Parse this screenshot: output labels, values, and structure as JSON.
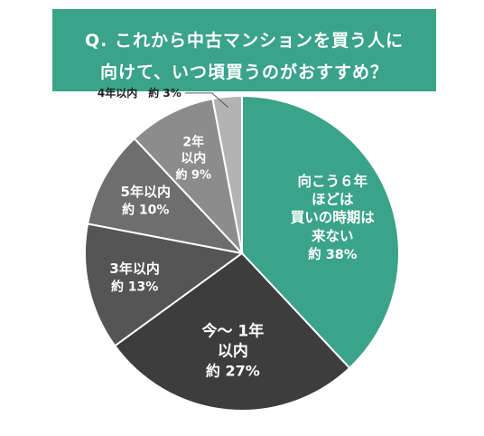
{
  "title": {
    "line1": "Q. これから中古マンションを買う人に",
    "line2": "向けて、いつ頃買うのがおすすめ？"
  },
  "chart_data": {
    "type": "pie",
    "title": "Q. これから中古マンションを買う人に向けて、いつ頃買うのがおすすめ？",
    "start_angle_deg": 0,
    "direction": "clockwise",
    "slices": [
      {
        "label": "向こう６年ほどは買いの時期は来ない",
        "label_lines": [
          "向こう６年",
          "ほどは",
          "買いの時期は",
          "来ない"
        ],
        "value": 38,
        "value_label": "約 38%",
        "color": "#3aa38a"
      },
      {
        "label": "今〜１年以内",
        "label_lines": [
          "今〜 1年",
          "以内"
        ],
        "value": 27,
        "value_label": "約 27%",
        "color": "#3d3d3d"
      },
      {
        "label": "３年以内",
        "label_lines": [
          "3年以内"
        ],
        "value": 13,
        "value_label": "約 13%",
        "color": "#555555"
      },
      {
        "label": "５年以内",
        "label_lines": [
          "5年以内"
        ],
        "value": 10,
        "value_label": "約 10%",
        "color": "#6e6e6e"
      },
      {
        "label": "２年以内",
        "label_lines": [
          "2年",
          "以内"
        ],
        "value": 9,
        "value_label": "約 9%",
        "color": "#8c8c8c"
      },
      {
        "label": "４年以内",
        "label_lines": [
          "4年以内"
        ],
        "value": 3,
        "value_label": "約 3%",
        "color": "#b3b3b3",
        "external": true,
        "external_text": "4年以内　約 3%"
      }
    ]
  }
}
